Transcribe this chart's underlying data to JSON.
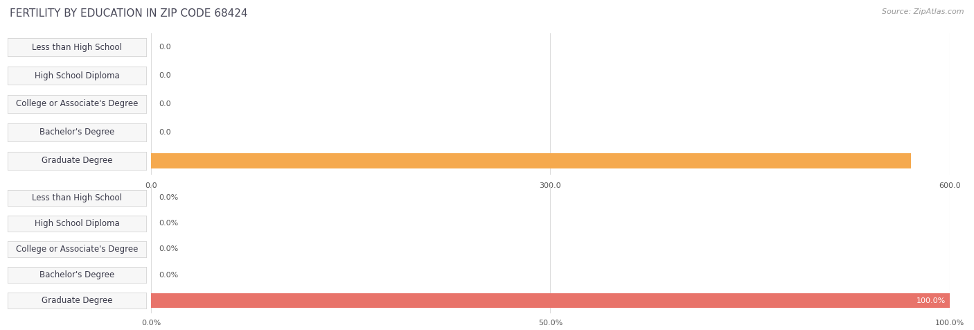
{
  "title": "FERTILITY BY EDUCATION IN ZIP CODE 68424",
  "source": "Source: ZipAtlas.com",
  "categories": [
    "Less than High School",
    "High School Diploma",
    "College or Associate's Degree",
    "Bachelor's Degree",
    "Graduate Degree"
  ],
  "values_abs": [
    0.0,
    0.0,
    0.0,
    0.0,
    571.0
  ],
  "values_pct": [
    0.0,
    0.0,
    0.0,
    0.0,
    100.0
  ],
  "xlim_abs": [
    0,
    600.0
  ],
  "xlim_pct": [
    0,
    100.0
  ],
  "xticks_abs": [
    0.0,
    300.0,
    600.0
  ],
  "xticks_pct": [
    0.0,
    50.0,
    100.0
  ],
  "bar_color_abs_highlight": "#F5A94E",
  "bar_color_abs_normal": "#FACCAA",
  "bar_color_pct_highlight": "#E8736A",
  "bar_color_pct_normal": "#F0A59E",
  "label_bg_color": "#f7f7f7",
  "label_border_color": "#cccccc",
  "row_bg_even": "#f2f2f2",
  "row_bg_odd": "#fafafa",
  "title_color": "#4a4a5a",
  "source_color": "#999999",
  "grid_color": "#dddddd",
  "value_label_color": "#555555",
  "value_label_highlight_color": "#ffffff",
  "title_fontsize": 11,
  "cat_fontsize": 8.5,
  "bar_label_fontsize": 8,
  "tick_fontsize": 8,
  "source_fontsize": 8,
  "fig_width": 14.06,
  "fig_height": 4.76,
  "dpi": 100
}
